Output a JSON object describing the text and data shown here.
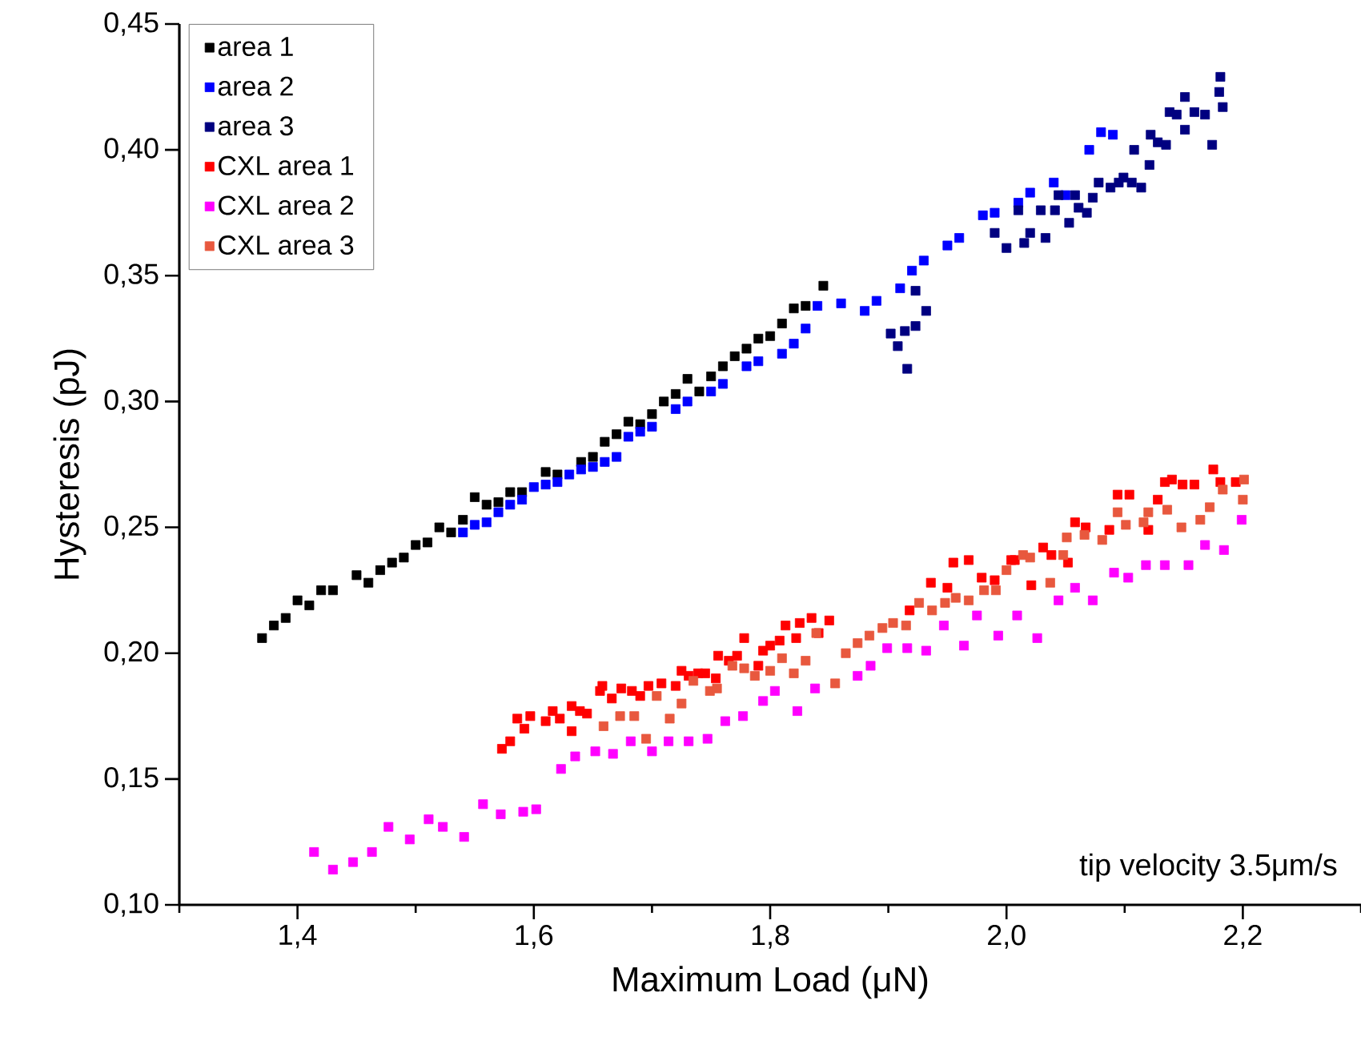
{
  "chart_data": {
    "type": "scatter",
    "xlabel": "Maximum Load (μN)",
    "ylabel": "Hysteresis (pJ)",
    "annotations": [
      "tip velocity 3.5μm/s"
    ],
    "xlim": [
      1.3,
      2.3
    ],
    "ylim": [
      0.1,
      0.45
    ],
    "xticks": [
      {
        "value": 1.3,
        "label": null
      },
      {
        "value": 1.4,
        "label": "1,4"
      },
      {
        "value": 1.5,
        "label": null
      },
      {
        "value": 1.6,
        "label": "1,6"
      },
      {
        "value": 1.7,
        "label": null
      },
      {
        "value": 1.8,
        "label": "1,8"
      },
      {
        "value": 1.9,
        "label": null
      },
      {
        "value": 2.0,
        "label": "2,0"
      },
      {
        "value": 2.1,
        "label": null
      },
      {
        "value": 2.2,
        "label": "2,2"
      },
      {
        "value": 2.3,
        "label": null
      }
    ],
    "yticks": [
      {
        "value": 0.1,
        "label": "0,10"
      },
      {
        "value": 0.15,
        "label": "0,15"
      },
      {
        "value": 0.2,
        "label": "0,20"
      },
      {
        "value": 0.25,
        "label": "0,25"
      },
      {
        "value": 0.3,
        "label": "0,30"
      },
      {
        "value": 0.35,
        "label": "0,35"
      },
      {
        "value": 0.4,
        "label": "0,40"
      },
      {
        "value": 0.45,
        "label": "0,45"
      }
    ],
    "legend": "top left",
    "marker": "square",
    "series": [
      {
        "name": "area 1",
        "color": "#000000",
        "x": [
          1.37,
          1.38,
          1.39,
          1.4,
          1.41,
          1.42,
          1.43,
          1.45,
          1.46,
          1.47,
          1.48,
          1.49,
          1.5,
          1.51,
          1.52,
          1.53,
          1.54,
          1.55,
          1.56,
          1.57,
          1.58,
          1.59,
          1.6,
          1.61,
          1.62,
          1.63,
          1.64,
          1.65,
          1.66,
          1.67,
          1.68,
          1.69,
          1.7,
          1.71,
          1.72,
          1.73,
          1.74,
          1.75,
          1.76,
          1.77,
          1.78,
          1.79,
          1.8,
          1.81,
          1.82,
          1.83,
          1.84,
          1.845
        ],
        "values": [
          0.206,
          0.211,
          0.214,
          0.221,
          0.219,
          0.225,
          0.225,
          0.231,
          0.228,
          0.233,
          0.236,
          0.238,
          0.243,
          0.244,
          0.25,
          0.248,
          0.253,
          0.262,
          0.259,
          0.26,
          0.264,
          0.264,
          null,
          0.272,
          0.271,
          null,
          0.276,
          0.278,
          0.284,
          0.287,
          0.292,
          0.291,
          0.295,
          0.3,
          0.303,
          0.309,
          0.304,
          0.31,
          0.314,
          0.318,
          0.321,
          0.325,
          0.326,
          0.331,
          0.337,
          0.338,
          null,
          0.346
        ]
      },
      {
        "name": "area 2",
        "color": "#0000ff",
        "x": [
          1.54,
          1.55,
          1.56,
          1.57,
          1.58,
          1.59,
          1.6,
          1.61,
          1.62,
          1.63,
          1.64,
          1.65,
          1.66,
          1.67,
          1.68,
          1.69,
          1.7,
          1.72,
          1.73,
          1.75,
          1.76,
          1.78,
          1.79,
          1.81,
          1.82,
          1.83,
          1.84,
          1.86,
          1.88,
          1.89,
          1.91,
          1.92,
          1.93,
          1.95,
          1.96,
          1.98,
          1.99,
          2.01,
          2.02,
          2.04,
          2.05,
          2.07,
          2.08,
          2.09
        ],
        "values": [
          0.248,
          0.251,
          0.252,
          0.256,
          0.259,
          0.261,
          0.266,
          0.267,
          0.268,
          0.271,
          0.273,
          0.274,
          0.276,
          0.278,
          0.286,
          0.288,
          0.29,
          0.297,
          0.3,
          0.304,
          0.307,
          0.314,
          0.316,
          0.319,
          0.323,
          0.329,
          0.338,
          0.339,
          0.336,
          0.34,
          0.345,
          0.352,
          0.356,
          0.362,
          0.365,
          0.374,
          0.375,
          0.379,
          0.383,
          0.387,
          0.382,
          0.4,
          0.407,
          0.406
        ]
      },
      {
        "name": "area 3",
        "color": "#000080",
        "x": [
          1.923,
          1.932,
          1.923,
          1.914,
          1.902,
          1.908,
          1.916,
          1.99,
          2.0,
          2.01,
          2.015,
          2.02,
          2.029,
          2.033,
          2.041,
          2.044,
          2.053,
          2.058,
          2.061,
          2.068,
          2.073,
          2.078,
          2.088,
          2.095,
          2.099,
          2.106,
          2.114,
          2.108,
          2.121,
          2.122,
          2.128,
          2.135,
          2.138,
          2.144,
          2.151,
          2.151,
          2.159,
          2.168,
          2.174,
          2.18,
          2.181,
          2.183
        ],
        "values": [
          0.344,
          0.336,
          0.33,
          0.328,
          0.327,
          0.322,
          0.313,
          0.367,
          0.361,
          0.376,
          0.363,
          0.367,
          0.376,
          0.365,
          0.376,
          0.382,
          0.371,
          0.382,
          0.377,
          0.375,
          0.381,
          0.387,
          0.385,
          0.387,
          0.389,
          0.387,
          0.385,
          0.4,
          0.394,
          0.406,
          0.403,
          0.402,
          0.415,
          0.414,
          0.408,
          0.421,
          0.415,
          0.414,
          0.402,
          0.423,
          0.429,
          0.417
        ]
      },
      {
        "name": "CXL area 1",
        "color": "#ff0000",
        "x": [
          1.573,
          1.58,
          1.586,
          1.592,
          1.597,
          1.61,
          1.616,
          1.622,
          1.632,
          1.632,
          1.639,
          1.645,
          1.656,
          1.658,
          1.666,
          1.674,
          1.683,
          1.69,
          1.697,
          1.708,
          1.72,
          1.725,
          1.731,
          1.739,
          1.745,
          1.754,
          1.756,
          1.765,
          1.772,
          1.778,
          1.79,
          1.794,
          1.8,
          1.808,
          1.813,
          1.822,
          1.825,
          1.835,
          1.841,
          1.85,
          1.918,
          1.936,
          1.95,
          1.955,
          1.968,
          1.979,
          1.99,
          2.004,
          2.007,
          2.021,
          2.031,
          2.038,
          2.052,
          2.058,
          2.067,
          2.087,
          2.094,
          2.104,
          2.12,
          2.128,
          2.134,
          2.14,
          2.149,
          2.159,
          2.175,
          2.181,
          2.194
        ],
        "values": [
          0.162,
          0.165,
          0.174,
          0.17,
          0.175,
          0.173,
          0.177,
          0.174,
          0.169,
          0.179,
          0.177,
          0.176,
          0.185,
          0.187,
          0.182,
          0.186,
          0.185,
          0.183,
          0.187,
          0.188,
          0.187,
          0.193,
          0.191,
          0.192,
          0.192,
          0.19,
          0.199,
          0.197,
          0.199,
          0.206,
          0.195,
          0.201,
          0.203,
          0.205,
          0.211,
          0.206,
          0.212,
          0.214,
          0.208,
          0.213,
          0.217,
          0.228,
          0.226,
          0.236,
          0.237,
          0.23,
          0.229,
          0.237,
          0.237,
          0.227,
          0.242,
          0.239,
          0.236,
          0.252,
          0.25,
          0.249,
          0.263,
          0.263,
          0.249,
          0.261,
          0.268,
          0.269,
          0.267,
          0.267,
          0.273,
          0.268,
          0.268
        ]
      },
      {
        "name": "CXL area 2",
        "color": "#ff00ff",
        "x": [
          1.414,
          1.43,
          1.447,
          1.463,
          1.477,
          1.495,
          1.511,
          1.523,
          1.541,
          1.557,
          1.572,
          1.591,
          1.602,
          1.623,
          1.635,
          1.652,
          1.667,
          1.682,
          1.7,
          1.714,
          1.731,
          1.747,
          1.762,
          1.777,
          1.794,
          1.804,
          1.823,
          1.838,
          1.874,
          1.885,
          1.899,
          1.916,
          1.932,
          1.947,
          1.964,
          1.975,
          1.993,
          2.009,
          2.026,
          2.044,
          2.058,
          2.073,
          2.091,
          2.103,
          2.118,
          2.134,
          2.154,
          2.168,
          2.184,
          2.199
        ],
        "values": [
          0.121,
          0.114,
          0.117,
          0.121,
          0.131,
          0.126,
          0.134,
          0.131,
          0.127,
          0.14,
          0.136,
          0.137,
          0.138,
          0.154,
          0.159,
          0.161,
          0.16,
          0.165,
          0.161,
          0.165,
          0.165,
          0.166,
          0.173,
          0.175,
          0.181,
          0.185,
          0.177,
          0.186,
          0.191,
          0.195,
          0.202,
          0.202,
          0.201,
          0.211,
          0.203,
          0.215,
          0.207,
          0.215,
          0.206,
          0.221,
          0.226,
          0.221,
          0.232,
          0.23,
          0.235,
          0.235,
          0.235,
          0.243,
          0.241,
          0.253
        ]
      },
      {
        "name": "CXL area 3",
        "color": "#e8583e",
        "x": [
          1.659,
          1.673,
          1.685,
          1.695,
          1.704,
          1.715,
          1.725,
          1.735,
          1.749,
          1.755,
          1.768,
          1.778,
          1.787,
          1.8,
          1.81,
          1.82,
          1.83,
          1.839,
          1.855,
          1.864,
          1.874,
          1.884,
          1.895,
          1.904,
          1.915,
          1.926,
          1.937,
          1.948,
          1.957,
          1.968,
          1.981,
          1.991,
          2.0,
          2.014,
          2.02,
          2.037,
          2.048,
          2.051,
          2.066,
          2.081,
          2.094,
          2.101,
          2.116,
          2.12,
          2.136,
          2.148,
          2.164,
          2.172,
          2.183,
          2.2,
          2.201
        ],
        "values": [
          0.171,
          0.175,
          0.175,
          0.166,
          0.183,
          0.174,
          0.18,
          0.189,
          0.185,
          0.186,
          0.195,
          0.194,
          0.191,
          0.193,
          0.198,
          0.192,
          0.197,
          0.208,
          0.188,
          0.2,
          0.204,
          0.207,
          0.21,
          0.212,
          0.211,
          0.22,
          0.217,
          0.22,
          0.222,
          0.221,
          0.225,
          0.225,
          0.233,
          0.239,
          0.238,
          0.228,
          0.239,
          0.246,
          0.247,
          0.245,
          0.256,
          0.251,
          0.252,
          0.256,
          0.257,
          0.25,
          0.253,
          0.258,
          0.265,
          0.261,
          0.269
        ]
      }
    ]
  }
}
